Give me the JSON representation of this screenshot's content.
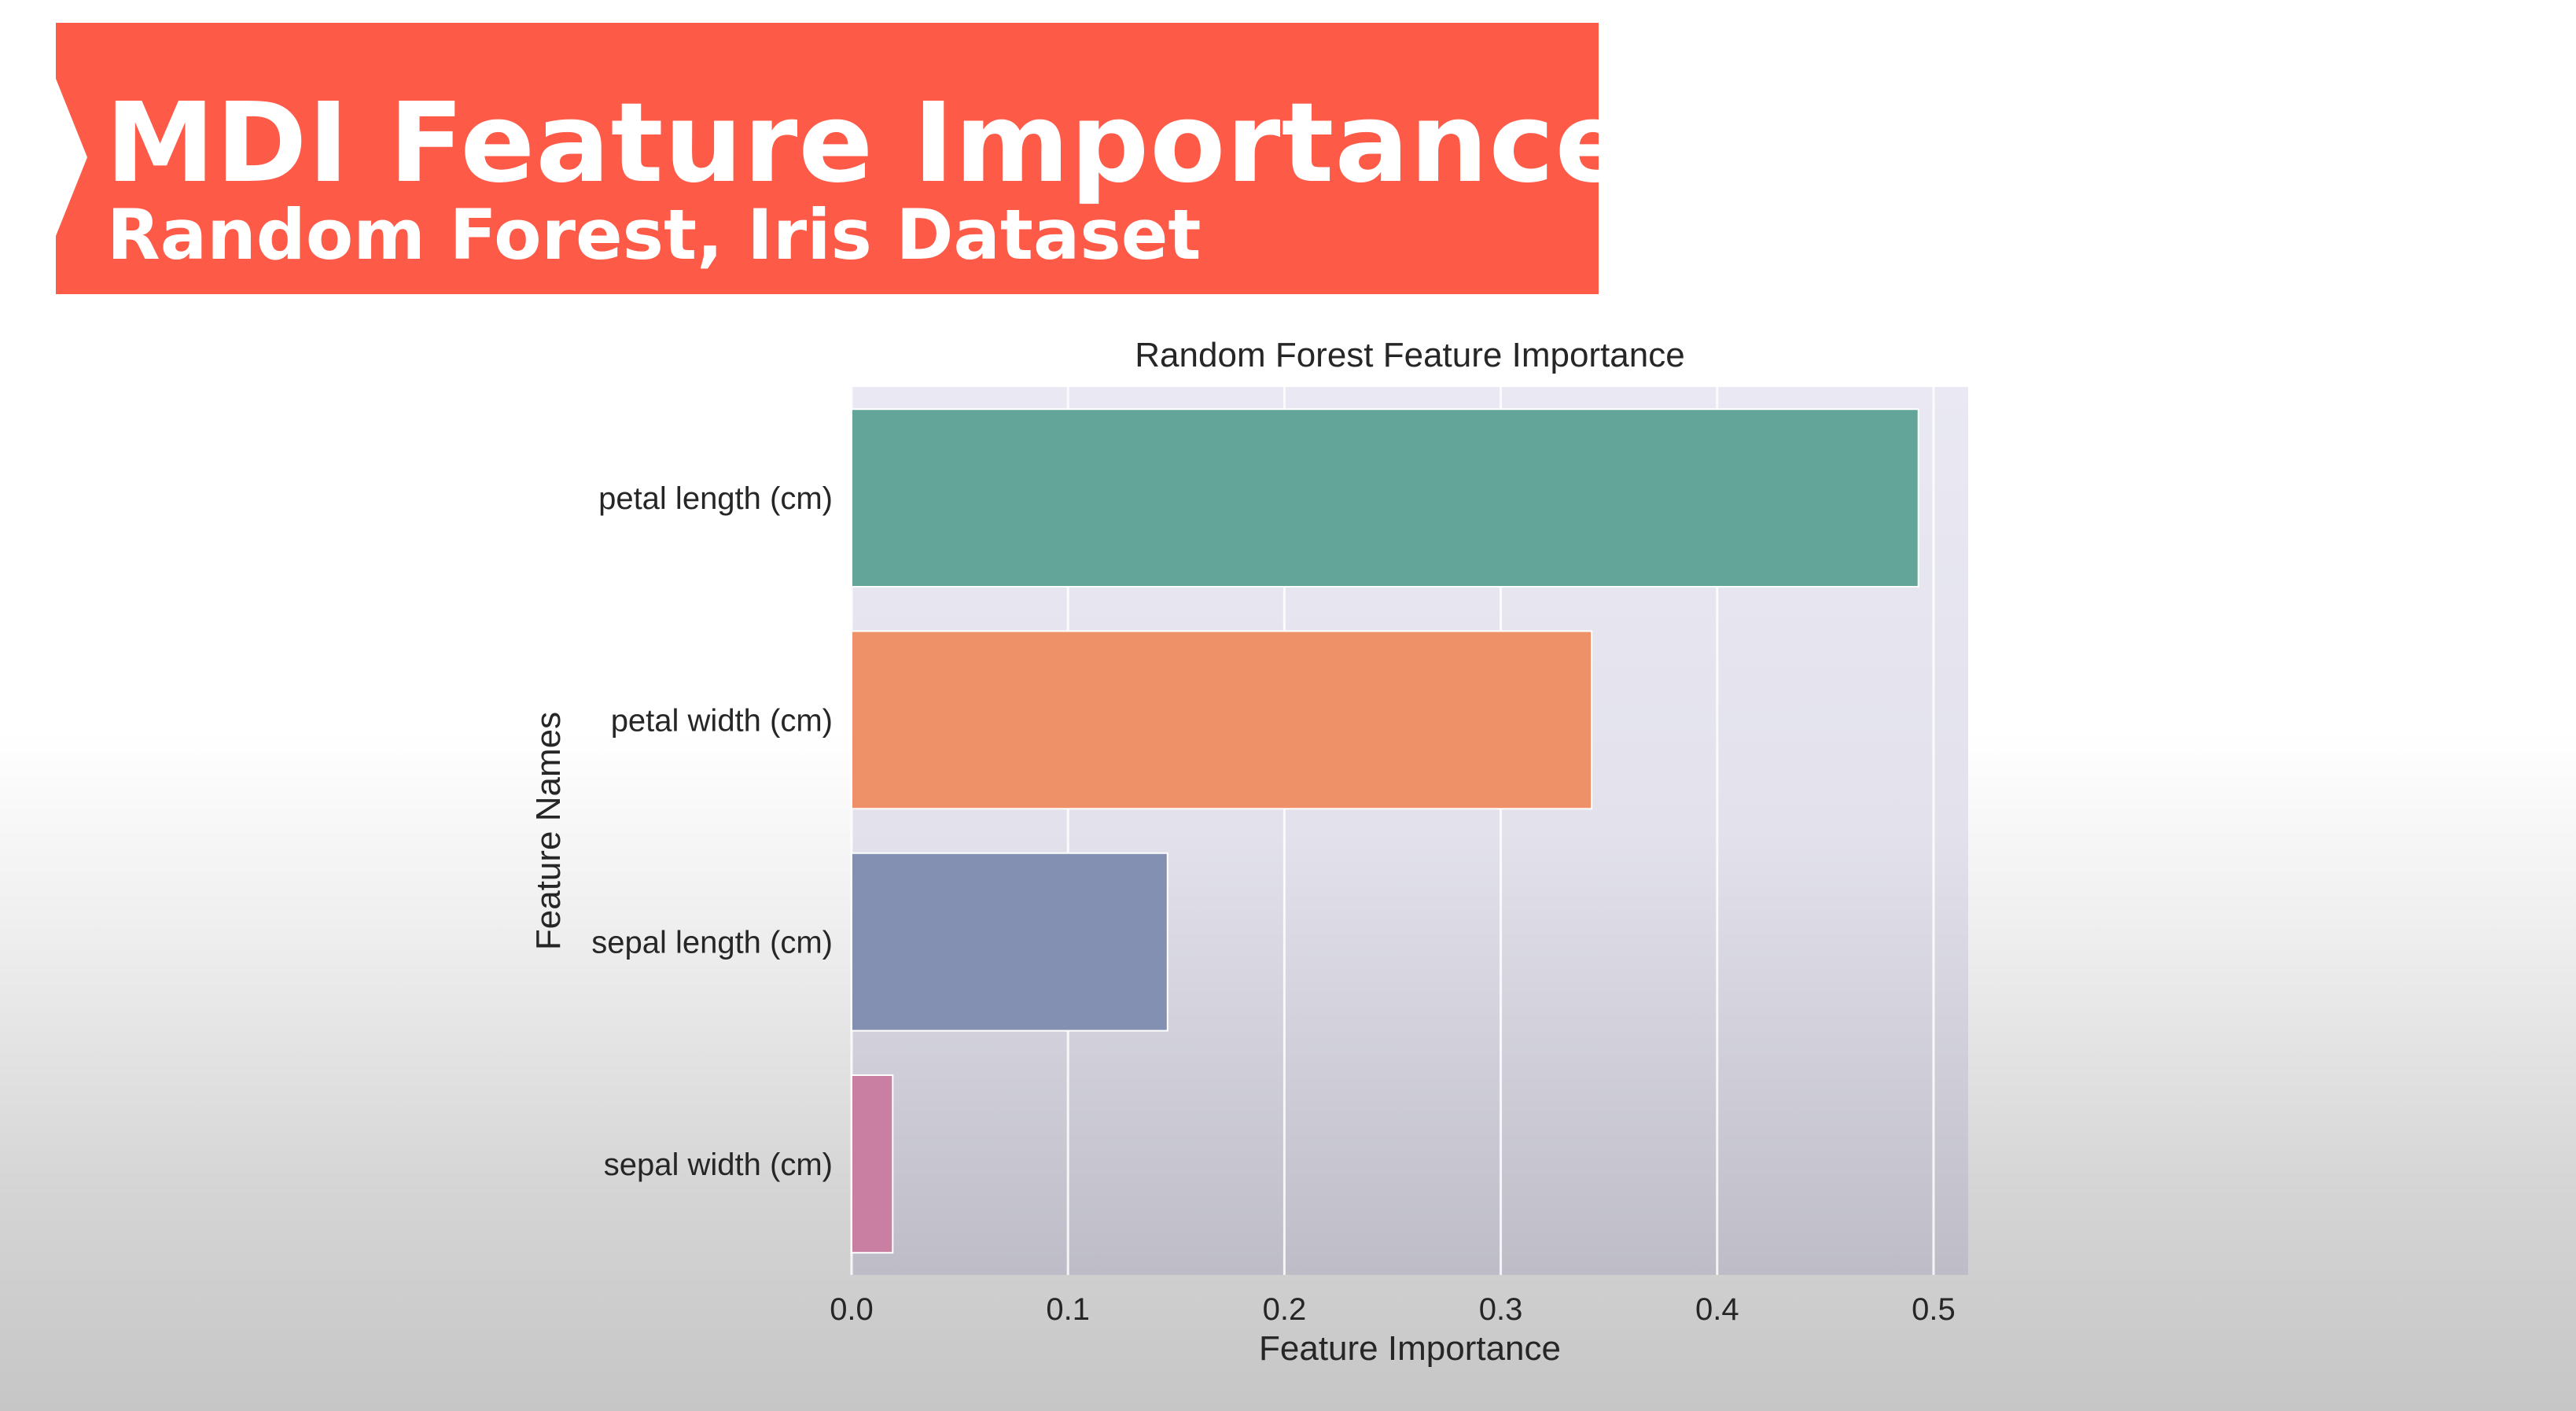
{
  "banner": {
    "title": "MDI Feature Importance",
    "subtitle": "Random Forest, Iris Dataset",
    "color": "#fd5a48"
  },
  "chart_data": {
    "type": "bar",
    "orientation": "horizontal",
    "title": "Random Forest Feature Importance",
    "xlabel": "Feature Importance",
    "ylabel": "Feature Names",
    "categories": [
      "petal length (cm)",
      "petal width (cm)",
      "sepal length (cm)",
      "sepal width (cm)"
    ],
    "values": [
      0.493,
      0.342,
      0.146,
      0.019
    ],
    "colors": [
      "#63a598",
      "#ee9068",
      "#8490b2",
      "#c87fa1"
    ],
    "xlim": [
      0.0,
      0.516
    ],
    "xticks": [
      0.0,
      0.1,
      0.2,
      0.3,
      0.4,
      0.5
    ],
    "xtick_labels": [
      "0.0",
      "0.1",
      "0.2",
      "0.3",
      "0.4",
      "0.5"
    ],
    "grid": true
  }
}
